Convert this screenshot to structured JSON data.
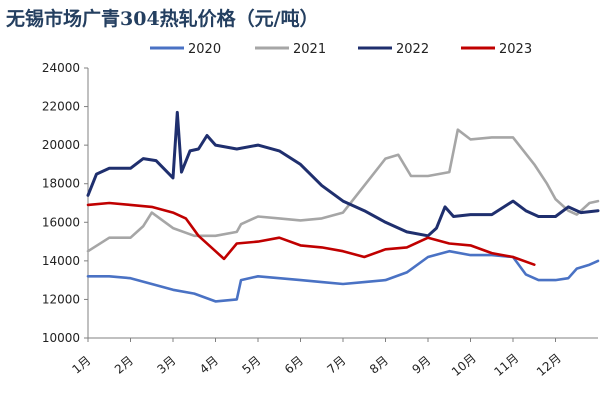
{
  "chart_data": {
    "type": "line",
    "title": "无锡市场广青304热轧价格（元/吨）",
    "x": [
      "1月",
      "2月",
      "3月",
      "4月",
      "5月",
      "6月",
      "7月",
      "8月",
      "9月",
      "10月",
      "11月",
      "12月"
    ],
    "ylim": [
      10000,
      24000
    ],
    "yticks": [
      10000,
      12000,
      14000,
      16000,
      18000,
      20000,
      22000,
      24000
    ],
    "grid": false,
    "legend_position": "top",
    "series": [
      {
        "name": "2020",
        "color": "#4a72c4",
        "points": [
          [
            1,
            13200
          ],
          [
            1.5,
            13200
          ],
          [
            2,
            13100
          ],
          [
            2.5,
            12800
          ],
          [
            3,
            12500
          ],
          [
            3.5,
            12300
          ],
          [
            4,
            11900
          ],
          [
            4.5,
            12000
          ],
          [
            4.6,
            13000
          ],
          [
            5,
            13200
          ],
          [
            5.5,
            13100
          ],
          [
            6,
            13000
          ],
          [
            6.5,
            12900
          ],
          [
            7,
            12800
          ],
          [
            7.5,
            12900
          ],
          [
            8,
            13000
          ],
          [
            8.5,
            13400
          ],
          [
            9,
            14200
          ],
          [
            9.5,
            14500
          ],
          [
            10,
            14300
          ],
          [
            10.5,
            14300
          ],
          [
            11,
            14200
          ],
          [
            11.3,
            13300
          ],
          [
            11.6,
            13000
          ],
          [
            12,
            13000
          ],
          [
            12.3,
            13100
          ],
          [
            12.5,
            13600
          ],
          [
            12.8,
            13800
          ],
          [
            13,
            14000
          ]
        ]
      },
      {
        "name": "2021",
        "color": "#a6a6a6",
        "points": [
          [
            1,
            14500
          ],
          [
            1.5,
            15200
          ],
          [
            2,
            15200
          ],
          [
            2.3,
            15800
          ],
          [
            2.5,
            16500
          ],
          [
            3,
            15700
          ],
          [
            3.5,
            15300
          ],
          [
            4,
            15300
          ],
          [
            4.5,
            15500
          ],
          [
            4.6,
            15900
          ],
          [
            5,
            16300
          ],
          [
            5.5,
            16200
          ],
          [
            6,
            16100
          ],
          [
            6.5,
            16200
          ],
          [
            7,
            16500
          ],
          [
            7.5,
            17900
          ],
          [
            8,
            19300
          ],
          [
            8.3,
            19500
          ],
          [
            8.6,
            18400
          ],
          [
            9,
            18400
          ],
          [
            9.5,
            18600
          ],
          [
            9.7,
            20800
          ],
          [
            10,
            20300
          ],
          [
            10.5,
            20400
          ],
          [
            11,
            20400
          ],
          [
            11.5,
            19000
          ],
          [
            11.8,
            18000
          ],
          [
            12,
            17200
          ],
          [
            12.3,
            16600
          ],
          [
            12.5,
            16400
          ],
          [
            12.8,
            17000
          ],
          [
            13,
            17100
          ]
        ]
      },
      {
        "name": "2022",
        "color": "#1f2f6e",
        "points": [
          [
            1,
            17400
          ],
          [
            1.2,
            18500
          ],
          [
            1.5,
            18800
          ],
          [
            2,
            18800
          ],
          [
            2.3,
            19300
          ],
          [
            2.6,
            19200
          ],
          [
            3,
            18300
          ],
          [
            3.1,
            21700
          ],
          [
            3.2,
            18600
          ],
          [
            3.4,
            19700
          ],
          [
            3.6,
            19800
          ],
          [
            3.8,
            20500
          ],
          [
            4,
            20000
          ],
          [
            4.5,
            19800
          ],
          [
            5,
            20000
          ],
          [
            5.5,
            19700
          ],
          [
            6,
            19000
          ],
          [
            6.5,
            17900
          ],
          [
            7,
            17100
          ],
          [
            7.5,
            16600
          ],
          [
            8,
            16000
          ],
          [
            8.5,
            15500
          ],
          [
            9,
            15300
          ],
          [
            9.2,
            15700
          ],
          [
            9.4,
            16800
          ],
          [
            9.6,
            16300
          ],
          [
            10,
            16400
          ],
          [
            10.5,
            16400
          ],
          [
            11,
            17100
          ],
          [
            11.3,
            16600
          ],
          [
            11.6,
            16300
          ],
          [
            12,
            16300
          ],
          [
            12.3,
            16800
          ],
          [
            12.6,
            16500
          ],
          [
            13,
            16600
          ]
        ]
      },
      {
        "name": "2023",
        "color": "#c00000",
        "points": [
          [
            1,
            16900
          ],
          [
            1.5,
            17000
          ],
          [
            2,
            16900
          ],
          [
            2.5,
            16800
          ],
          [
            3,
            16500
          ],
          [
            3.3,
            16200
          ],
          [
            3.6,
            15300
          ],
          [
            4,
            14500
          ],
          [
            4.2,
            14100
          ],
          [
            4.5,
            14900
          ],
          [
            5,
            15000
          ],
          [
            5.5,
            15200
          ],
          [
            6,
            14800
          ],
          [
            6.5,
            14700
          ],
          [
            7,
            14500
          ],
          [
            7.5,
            14200
          ],
          [
            8,
            14600
          ],
          [
            8.5,
            14700
          ],
          [
            9,
            15200
          ],
          [
            9.5,
            14900
          ],
          [
            10,
            14800
          ],
          [
            10.5,
            14400
          ],
          [
            11,
            14200
          ],
          [
            11.5,
            13800
          ]
        ]
      }
    ]
  }
}
